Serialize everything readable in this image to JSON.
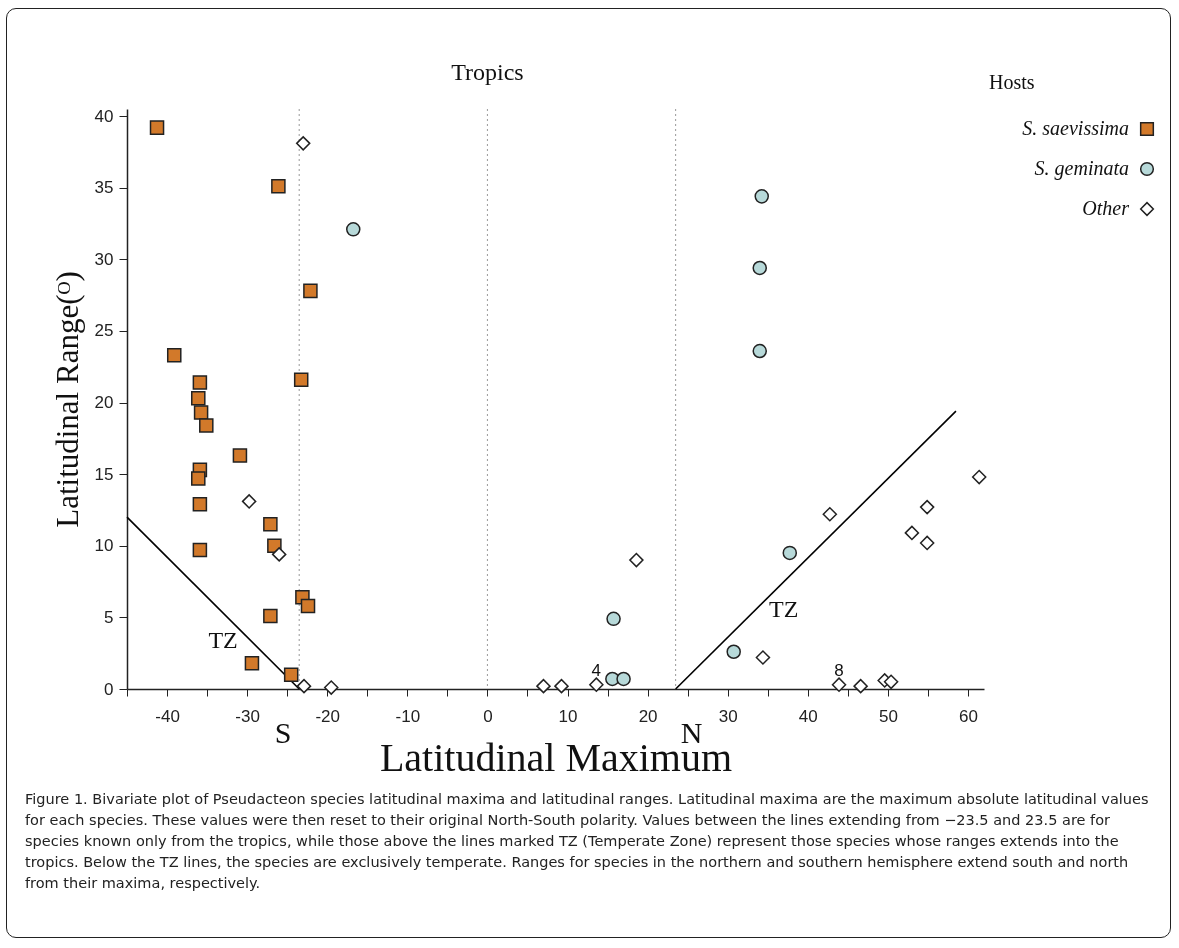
{
  "chart_data": {
    "type": "scatter",
    "xlabel": "Latitudinal  Maximum",
    "ylabel": "Latitudinal Range(ᴼ)",
    "legend_title": "Hosts",
    "legend": "top right",
    "grid": false,
    "xlim": [
      -45,
      62
    ],
    "ylim": [
      0,
      40.5
    ],
    "xticks": [
      -40,
      {
        "value": -45,
        "label": null
      },
      {
        "value": -35,
        "label": null
      },
      -30,
      {
        "value": -25,
        "label": null
      },
      -20,
      {
        "value": -15,
        "label": null
      },
      -10,
      {
        "value": -5,
        "label": null
      },
      0,
      {
        "value": 5,
        "label": null
      },
      10,
      {
        "value": 15,
        "label": null
      },
      20,
      {
        "value": 25,
        "label": null
      },
      30,
      {
        "value": 35,
        "label": null
      },
      40,
      {
        "value": 45,
        "label": null
      },
      50,
      {
        "value": 55,
        "label": null
      },
      60
    ],
    "yticks": [
      0,
      5,
      10,
      15,
      20,
      25,
      30,
      35,
      40
    ],
    "series": [
      {
        "name": "S. saevissima",
        "color": "#d2792a",
        "marker": "square",
        "x": [
          -41.25,
          -26.1,
          -22.1,
          -39.1,
          -23.25,
          -35.9,
          -36.1,
          -35.75,
          -35.1,
          -30.9,
          -35.9,
          -36.1,
          -35.9,
          -35.9,
          -27.1,
          -26.6,
          -23.1,
          -22.4,
          -27.1,
          -29.4,
          -24.5
        ],
        "values": [
          39.2,
          35.1,
          27.8,
          23.3,
          21.6,
          21.4,
          20.3,
          19.3,
          18.4,
          16.3,
          15.3,
          14.7,
          12.9,
          9.7,
          11.5,
          10.0,
          6.4,
          5.8,
          5.1,
          1.8,
          1.0
        ]
      },
      {
        "name": "S. geminata",
        "color": "#b7d9d9",
        "marker": "circle",
        "x": [
          -16.75,
          34.25,
          34.0,
          34.0,
          15.75,
          15.6,
          17.0,
          37.75,
          30.75
        ],
        "values": [
          32.1,
          34.4,
          29.4,
          23.6,
          4.9,
          0.7,
          0.7,
          9.5,
          2.6
        ]
      },
      {
        "name": "Other",
        "color": "#ffffff",
        "marker": "diamond",
        "x": [
          -23.0,
          -29.75,
          -26.0,
          -22.9,
          -19.5,
          7.0,
          9.25,
          13.6,
          18.6,
          42.75,
          34.4,
          43.9,
          46.6,
          49.6,
          50.4,
          53.0,
          54.9,
          54.9,
          61.4
        ],
        "values": [
          38.1,
          13.1,
          9.4,
          0.2,
          0.1,
          0.2,
          0.2,
          0.3,
          9.0,
          12.2,
          2.2,
          0.3,
          0.2,
          0.6,
          0.5,
          10.9,
          12.7,
          10.2,
          14.8
        ]
      },
      {
        "type": "line",
        "color": "#000000",
        "x": [
          -45,
          -23.5
        ],
        "values": [
          12.0,
          0
        ]
      },
      {
        "type": "line",
        "color": "#000000",
        "x": [
          23.5,
          58.5
        ],
        "values": [
          0,
          19.4
        ]
      }
    ],
    "ref_lines": [
      {
        "axis": "x",
        "value": -23.5,
        "label": "S",
        "color": "#999999",
        "line_style": "dotted"
      },
      {
        "axis": "x",
        "value": 0,
        "color": "#999999",
        "line_style": "dotted"
      },
      {
        "axis": "x",
        "value": 23.5,
        "label": "N",
        "color": "#999999",
        "line_style": "dotted"
      }
    ],
    "annotations": [
      {
        "text": "Tropics",
        "x": 0,
        "y": 40.5
      },
      {
        "text": "TZ",
        "x": -33,
        "y": 5.3
      },
      {
        "text": "TZ",
        "x": 37,
        "y": 7.5
      },
      {
        "text": "4",
        "x": 13.6,
        "y": 0.3
      },
      {
        "text": "8",
        "x": 43.9,
        "y": 0.3
      },
      "Figure 1. Bivariate plot of Pseudacteon species latitudinal maxima and latitudinal ranges. Latitudinal maxima are the maximum absolute latitudinal values for each species. These values were then reset to their original North-South polarity. Values between the lines extending from −23.5 and 23.5 are for species known only from the tropics, while those above the lines marked TZ (Temperate Zone) represent those species whose ranges extends into the tropics. Below the TZ lines, the species are exclusively temperate. Ranges for species in the northern and southern hemisphere extend south and north from their maxima, respectively."
    ]
  }
}
